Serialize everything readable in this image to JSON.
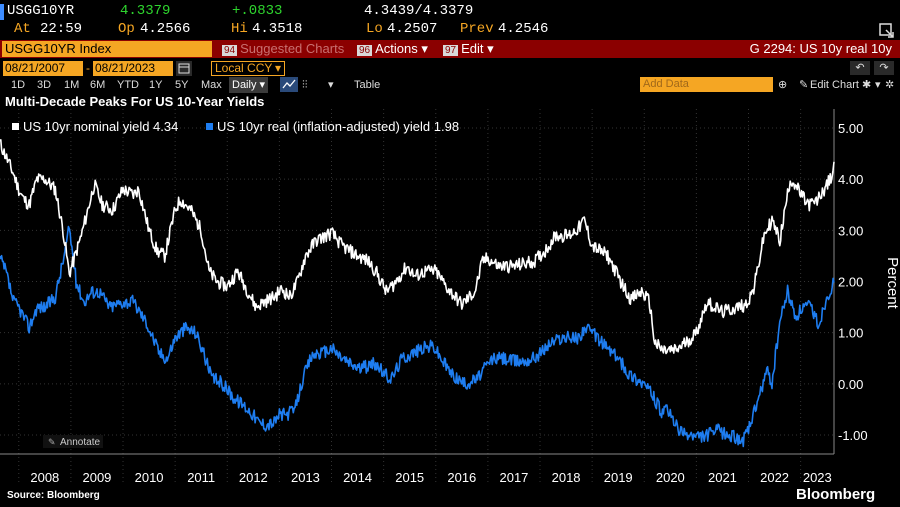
{
  "quote": {
    "ticker": "USGG10YR",
    "last": "4.3379",
    "change": "+.0833",
    "bid_ask": "4.3439/4.3379",
    "at_label": "At",
    "time": "22:59",
    "open_label": "Op",
    "open": "4.2566",
    "high_label": "Hi",
    "high": "4.3518",
    "low_label": "Lo",
    "low": "4.2507",
    "prev_label": "Prev",
    "prev": "4.2546"
  },
  "command_bar": {
    "security": "USGG10YR Index",
    "suggested_num": "94",
    "suggested": "Suggested Charts",
    "actions_num": "96",
    "actions": "Actions",
    "edit_num": "97",
    "edit": "Edit",
    "chart_id": "G 2294: US 10y real 10y"
  },
  "toolbar": {
    "start_date": "08/21/2007",
    "end_date": "08/21/2023",
    "currency": "Local CCY",
    "periods": [
      "1D",
      "3D",
      "1M",
      "6M",
      "YTD",
      "1Y",
      "5Y",
      "Max"
    ],
    "frequency": "Daily",
    "table": "Table",
    "add_data": "Add Data",
    "edit_chart": "Edit Chart"
  },
  "annotate": "Annotate",
  "footer": {
    "source": "Source: Bloomberg",
    "brand": "Bloomberg"
  },
  "colors": {
    "nominal": "#ffffff",
    "real": "#1e7df0",
    "amber": "#f5a623",
    "command_bar": "#8b0000"
  },
  "chart_data": {
    "type": "line",
    "title": "Multi-Decade Peaks For US 10-Year Yields",
    "ylabel": "Percent",
    "ylim": [
      -1.4,
      5.4
    ],
    "xlim": [
      2007.64,
      2023.64
    ],
    "yticks": [
      5.0,
      4.0,
      3.0,
      2.0,
      1.0,
      0.0,
      -1.0
    ],
    "ytick_labels": [
      "5.00",
      "4.00",
      "3.00",
      "2.00",
      "1.00",
      "0.00",
      "-1.00"
    ],
    "xticks": [
      "2008",
      "2009",
      "2010",
      "2011",
      "2012",
      "2013",
      "2014",
      "2015",
      "2016",
      "2017",
      "2018",
      "2019",
      "2020",
      "2021",
      "2022",
      "2023"
    ],
    "legend_position": "top-left",
    "series": [
      {
        "name": "US 10yr nominal yield",
        "last_value": "4.34",
        "color": "#ffffff",
        "x": [
          2007.64,
          2007.75,
          2007.9,
          2008.0,
          2008.1,
          2008.2,
          2008.35,
          2008.5,
          2008.7,
          2008.85,
          2008.97,
          2009.05,
          2009.2,
          2009.45,
          2009.6,
          2009.8,
          2010.0,
          2010.2,
          2010.3,
          2010.5,
          2010.65,
          2010.8,
          2011.0,
          2011.1,
          2011.3,
          2011.5,
          2011.65,
          2011.8,
          2012.0,
          2012.2,
          2012.35,
          2012.55,
          2012.7,
          2012.9,
          2013.05,
          2013.2,
          2013.35,
          2013.5,
          2013.7,
          2013.9,
          2014.0,
          2014.2,
          2014.5,
          2014.7,
          2014.85,
          2015.05,
          2015.2,
          2015.45,
          2015.6,
          2015.8,
          2016.0,
          2016.2,
          2016.5,
          2016.75,
          2016.9,
          2017.0,
          2017.2,
          2017.5,
          2017.7,
          2017.9,
          2018.1,
          2018.3,
          2018.55,
          2018.75,
          2018.85,
          2019.0,
          2019.3,
          2019.6,
          2019.75,
          2019.95,
          2020.1,
          2020.2,
          2020.35,
          2020.6,
          2020.85,
          2021.0,
          2021.2,
          2021.5,
          2021.8,
          2021.95,
          2022.1,
          2022.3,
          2022.45,
          2022.6,
          2022.8,
          2022.9,
          2023.0,
          2023.15,
          2023.3,
          2023.45,
          2023.6,
          2023.64
        ],
        "y": [
          4.7,
          4.45,
          4.1,
          3.8,
          3.6,
          3.5,
          4.0,
          4.0,
          3.8,
          3.0,
          2.15,
          2.4,
          2.9,
          3.9,
          3.5,
          3.4,
          3.8,
          3.7,
          3.8,
          3.0,
          2.6,
          2.5,
          3.4,
          3.6,
          3.4,
          3.0,
          2.2,
          2.0,
          1.9,
          2.2,
          1.9,
          1.5,
          1.6,
          1.7,
          1.85,
          1.7,
          2.0,
          2.5,
          2.8,
          2.9,
          2.95,
          2.7,
          2.5,
          2.4,
          2.2,
          1.8,
          1.95,
          2.3,
          2.1,
          2.2,
          2.2,
          1.9,
          1.55,
          1.8,
          2.4,
          2.45,
          2.3,
          2.3,
          2.35,
          2.4,
          2.6,
          2.9,
          2.9,
          3.05,
          3.2,
          2.7,
          2.5,
          1.9,
          1.65,
          1.8,
          1.6,
          0.8,
          0.65,
          0.65,
          0.85,
          1.0,
          1.6,
          1.4,
          1.5,
          1.55,
          1.85,
          2.9,
          3.2,
          2.8,
          4.0,
          3.9,
          3.7,
          3.5,
          3.55,
          3.8,
          4.05,
          4.34
        ]
      },
      {
        "name": "US 10yr real (inflation-adjusted) yield",
        "last_value": "1.98",
        "color": "#1e7df0",
        "x": [
          2007.64,
          2007.75,
          2007.9,
          2008.0,
          2008.2,
          2008.35,
          2008.5,
          2008.7,
          2008.85,
          2008.97,
          2009.1,
          2009.25,
          2009.4,
          2009.55,
          2009.75,
          2010.0,
          2010.2,
          2010.45,
          2010.7,
          2010.85,
          2011.0,
          2011.2,
          2011.4,
          2011.55,
          2011.7,
          2011.85,
          2012.0,
          2012.15,
          2012.3,
          2012.5,
          2012.6,
          2012.75,
          2012.9,
          2013.0,
          2013.15,
          2013.3,
          2013.45,
          2013.6,
          2013.7,
          2013.85,
          2014.0,
          2014.15,
          2014.35,
          2014.55,
          2014.7,
          2014.85,
          2015.0,
          2015.15,
          2015.35,
          2015.55,
          2015.75,
          2015.95,
          2016.1,
          2016.3,
          2016.55,
          2016.8,
          2016.9,
          2017.1,
          2017.3,
          2017.5,
          2017.7,
          2017.85,
          2018.0,
          2018.2,
          2018.4,
          2018.6,
          2018.75,
          2018.85,
          2019.0,
          2019.2,
          2019.5,
          2019.7,
          2019.85,
          2020.0,
          2020.15,
          2020.25,
          2020.35,
          2020.45,
          2020.6,
          2020.75,
          2020.9,
          2021.0,
          2021.2,
          2021.4,
          2021.6,
          2021.75,
          2021.9,
          2022.0,
          2022.1,
          2022.25,
          2022.35,
          2022.45,
          2022.6,
          2022.75,
          2022.9,
          2023.05,
          2023.2,
          2023.35,
          2023.5,
          2023.64
        ],
        "y": [
          2.45,
          2.2,
          1.6,
          1.5,
          1.1,
          1.5,
          1.5,
          1.7,
          2.4,
          3.05,
          2.0,
          1.6,
          1.8,
          1.8,
          1.5,
          1.6,
          1.6,
          1.2,
          0.6,
          0.5,
          0.9,
          1.1,
          1.0,
          0.6,
          0.1,
          0.05,
          -0.1,
          -0.3,
          -0.4,
          -0.6,
          -0.75,
          -0.8,
          -0.75,
          -0.6,
          -0.6,
          -0.5,
          0.1,
          0.5,
          0.6,
          0.6,
          0.7,
          0.55,
          0.4,
          0.3,
          0.35,
          0.4,
          0.2,
          0.1,
          0.5,
          0.6,
          0.7,
          0.75,
          0.5,
          0.2,
          0.0,
          0.1,
          0.25,
          0.5,
          0.5,
          0.45,
          0.45,
          0.5,
          0.6,
          0.8,
          0.9,
          0.9,
          0.9,
          1.1,
          1.0,
          0.8,
          0.5,
          0.2,
          0.1,
          0.0,
          -0.2,
          -0.4,
          -0.6,
          -0.5,
          -0.8,
          -1.0,
          -1.0,
          -1.05,
          -1.0,
          -0.9,
          -1.0,
          -1.05,
          -1.1,
          -0.9,
          -0.6,
          -0.1,
          0.25,
          0.0,
          1.2,
          1.8,
          1.3,
          1.5,
          1.5,
          1.15,
          1.7,
          1.98
        ]
      }
    ]
  }
}
